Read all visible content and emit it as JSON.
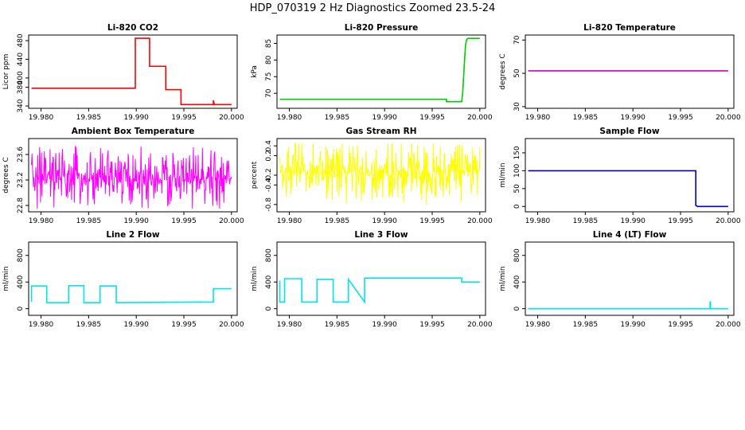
{
  "figure_title": "HDP_070319  2 Hz Diagnostics Zoomed 23.5-24",
  "chart_data": [
    {
      "type": "line",
      "title": "Li-820 CO2",
      "ylabel": "Licor ppm",
      "xlabel": "",
      "color": "#ff0000",
      "xlim": [
        19.9787,
        20.0006
      ],
      "ylim": [
        335,
        492
      ],
      "yticks": [
        340,
        380,
        400,
        440,
        480
      ],
      "ytick_labels": [
        "340",
        "380",
        "400",
        "440",
        "480"
      ],
      "xticks": [
        19.98,
        19.985,
        19.99,
        19.995,
        20.0
      ],
      "xtick_labels": [
        "19.980",
        "19.985",
        "19.990",
        "19.995",
        "20.000"
      ],
      "series": [
        {
          "x": [
            19.979,
            19.9899,
            19.9899,
            19.9914,
            19.9914,
            19.9931,
            19.9931,
            19.9947,
            19.9947,
            19.9981,
            19.9981,
            19.9982,
            19.9982,
            20.0
          ],
          "y": [
            378,
            378,
            485,
            485,
            425,
            425,
            375,
            375,
            343,
            343,
            352,
            343,
            343,
            343
          ]
        }
      ]
    },
    {
      "type": "line",
      "title": "Li-820 Pressure",
      "ylabel": "kPa",
      "xlabel": "",
      "color": "#00cc00",
      "xlim": [
        19.9787,
        20.0006
      ],
      "ylim": [
        65.5,
        87.5
      ],
      "yticks": [
        70,
        75,
        80,
        85
      ],
      "ytick_labels": [
        "70",
        "75",
        "80",
        "85"
      ],
      "xticks": [
        19.98,
        19.985,
        19.99,
        19.995,
        20.0
      ],
      "xtick_labels": [
        "19.980",
        "19.985",
        "19.990",
        "19.995",
        "20.000"
      ],
      "series": [
        {
          "x": [
            19.979,
            19.9965,
            19.9965,
            19.9981,
            19.9982,
            19.9983,
            19.9984,
            19.9985,
            19.9986,
            19.9987,
            19.9988,
            20.0
          ],
          "y": [
            68.2,
            68.2,
            67.5,
            67.5,
            70,
            75,
            80,
            84.5,
            86,
            86.4,
            86.5,
            86.5
          ]
        }
      ]
    },
    {
      "type": "line",
      "title": "Li-820 Temperature",
      "ylabel": "degrees C",
      "xlabel": "",
      "color": "#cc00cc",
      "xlim": [
        19.9787,
        20.0006
      ],
      "ylim": [
        29,
        73
      ],
      "yticks": [
        30,
        50,
        70
      ],
      "ytick_labels": [
        "30",
        "50",
        "70"
      ],
      "xticks": [
        19.98,
        19.985,
        19.99,
        19.995,
        20.0
      ],
      "xtick_labels": [
        "19.980",
        "19.985",
        "19.990",
        "19.995",
        "20.000"
      ],
      "series": [
        {
          "x": [
            19.979,
            20.0
          ],
          "y": [
            51.5,
            51.5
          ]
        }
      ]
    },
    {
      "type": "line",
      "title": "Ambient Box Temperature",
      "ylabel": "degrees C",
      "xlabel": "",
      "color": "#ff00ff",
      "noise": true,
      "xlim": [
        19.9787,
        20.0006
      ],
      "ylim": [
        22.7,
        23.85
      ],
      "yticks": [
        22.8,
        23.2,
        23.6
      ],
      "ytick_labels": [
        "22.8",
        "23.2",
        "23.6"
      ],
      "xticks": [
        19.98,
        19.985,
        19.99,
        19.995,
        20.0
      ],
      "xtick_labels": [
        "19.980",
        "19.985",
        "19.990",
        "19.995",
        "20.000"
      ],
      "series": [
        {
          "x": [
            19.979,
            20.0
          ],
          "y_center": 23.22,
          "y_min": 22.75,
          "y_max": 23.78
        }
      ]
    },
    {
      "type": "line",
      "title": "Gas Stream RH",
      "ylabel": "percent",
      "xlabel": "",
      "color": "#ffff00",
      "noise": true,
      "xlim": [
        19.9787,
        20.0006
      ],
      "ylim": [
        -0.95,
        0.55
      ],
      "yticks": [
        -0.8,
        -0.4,
        -0.2,
        0.2,
        0.4
      ],
      "ytick_labels": [
        "-0.8",
        "-0.4",
        "-0.2",
        "0.2",
        "0.4"
      ],
      "xticks": [
        19.98,
        19.985,
        19.99,
        19.995,
        20.0
      ],
      "xtick_labels": [
        "19.980",
        "19.985",
        "19.990",
        "19.995",
        "20.000"
      ],
      "series": [
        {
          "x": [
            19.979,
            20.0
          ],
          "y_center": -0.12,
          "y_min": -0.85,
          "y_max": 0.45
        }
      ]
    },
    {
      "type": "line",
      "title": "Sample Flow",
      "ylabel": "ml/min",
      "xlabel": "",
      "color": "#0000cc",
      "xlim": [
        19.9787,
        20.0006
      ],
      "ylim": [
        -15,
        190
      ],
      "yticks": [
        0,
        50,
        100,
        150
      ],
      "ytick_labels": [
        "0",
        "50",
        "100",
        "150"
      ],
      "xticks": [
        19.98,
        19.985,
        19.99,
        19.995,
        20.0
      ],
      "xtick_labels": [
        "19.980",
        "19.985",
        "19.990",
        "19.995",
        "20.000"
      ],
      "series": [
        {
          "x": [
            19.979,
            19.9966,
            19.9966,
            19.9968,
            20.0
          ],
          "y": [
            100,
            100,
            3,
            0,
            0
          ]
        }
      ]
    },
    {
      "type": "line",
      "title": "Line 2 Flow",
      "ylabel": "ml/min",
      "xlabel": "",
      "color": "#00e5ee",
      "xlim": [
        19.9787,
        20.0006
      ],
      "ylim": [
        -100,
        1000
      ],
      "yticks": [
        0,
        400,
        800
      ],
      "ytick_labels": [
        "0",
        "400",
        "800"
      ],
      "xticks": [
        19.98,
        19.985,
        19.99,
        19.995,
        20.0
      ],
      "xtick_labels": [
        "19.980",
        "19.985",
        "19.990",
        "19.995",
        "20.000"
      ],
      "series": [
        {
          "x": [
            19.979,
            19.979,
            19.9806,
            19.9806,
            19.9829,
            19.9829,
            19.9845,
            19.9845,
            19.9862,
            19.9862,
            19.9879,
            19.9879,
            19.9981,
            19.9981,
            20.0
          ],
          "y": [
            100,
            340,
            340,
            90,
            90,
            345,
            345,
            90,
            90,
            340,
            340,
            90,
            100,
            300,
            300
          ]
        }
      ]
    },
    {
      "type": "line",
      "title": "Line 3 Flow",
      "ylabel": "ml/min",
      "xlabel": "",
      "color": "#00e5ee",
      "xlim": [
        19.9787,
        20.0006
      ],
      "ylim": [
        -100,
        1000
      ],
      "yticks": [
        0,
        400,
        800
      ],
      "ytick_labels": [
        "0",
        "400",
        "800"
      ],
      "xticks": [
        19.98,
        19.985,
        19.99,
        19.995,
        20.0
      ],
      "xtick_labels": [
        "19.980",
        "19.985",
        "19.990",
        "19.995",
        "20.000"
      ],
      "series": [
        {
          "x": [
            19.979,
            19.979,
            19.9795,
            19.9795,
            19.9813,
            19.9813,
            19.9829,
            19.9829,
            19.9846,
            19.9846,
            19.9862,
            19.9862,
            19.9879,
            19.9879,
            19.9981,
            19.9981,
            20.0
          ],
          "y": [
            420,
            100,
            100,
            450,
            450,
            100,
            100,
            440,
            440,
            100,
            100,
            440,
            100,
            460,
            460,
            400,
            400
          ]
        }
      ]
    },
    {
      "type": "line",
      "title": "Line 4 (LT) Flow",
      "ylabel": "ml/min",
      "xlabel": "",
      "color": "#00e5ee",
      "xlim": [
        19.9787,
        20.0006
      ],
      "ylim": [
        -100,
        1000
      ],
      "yticks": [
        0,
        400,
        800
      ],
      "ytick_labels": [
        "0",
        "400",
        "800"
      ],
      "xticks": [
        19.98,
        19.985,
        19.99,
        19.995,
        20.0
      ],
      "xtick_labels": [
        "19.980",
        "19.985",
        "19.990",
        "19.995",
        "20.000"
      ],
      "series": [
        {
          "x": [
            19.979,
            19.9981,
            19.9981,
            19.99815,
            19.99815,
            20.0
          ],
          "y": [
            0,
            0,
            100,
            100,
            0,
            0
          ]
        }
      ]
    }
  ]
}
